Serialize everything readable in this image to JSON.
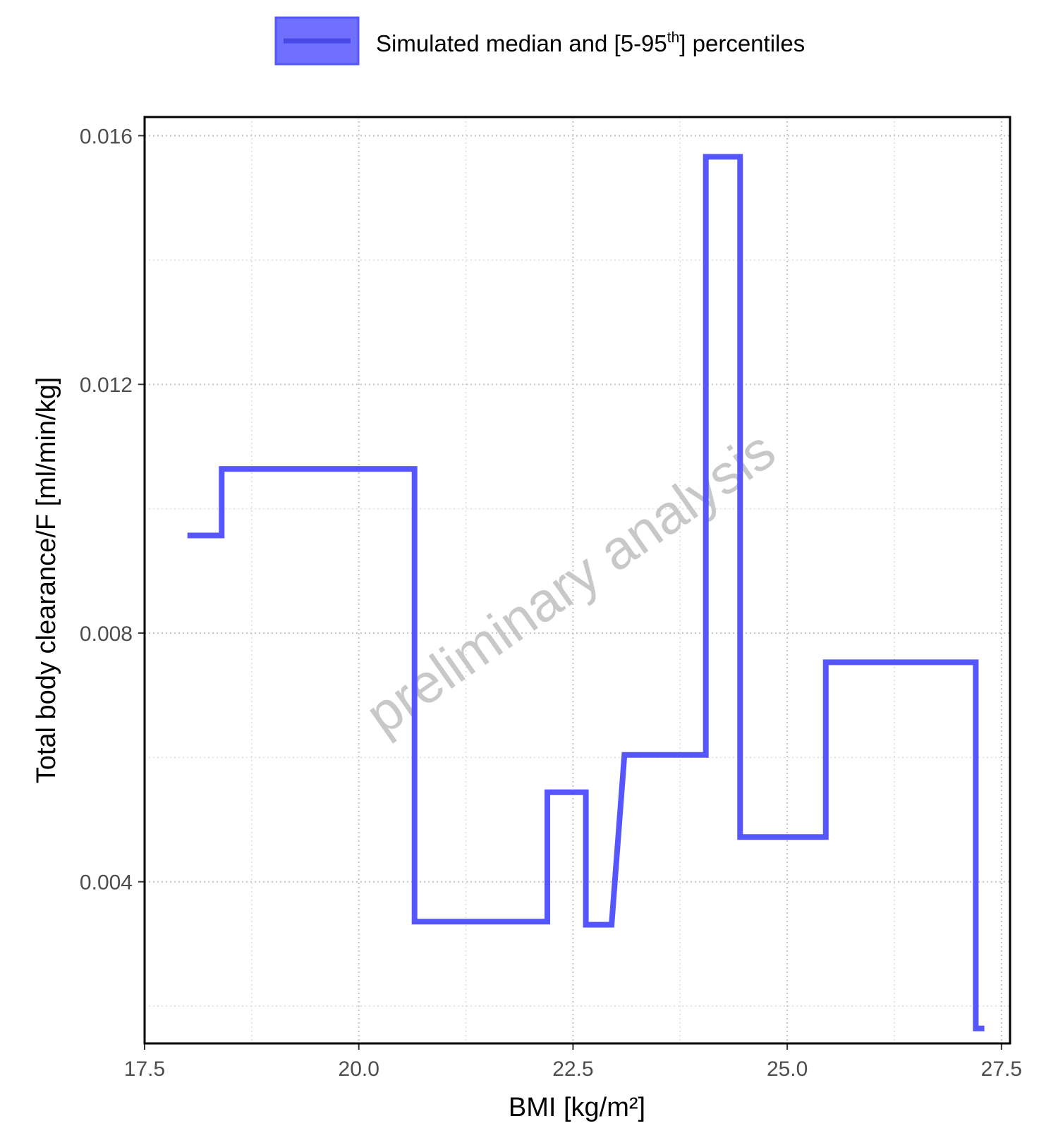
{
  "chart_data": {
    "type": "line",
    "step": true,
    "xlabel": "BMI [kg/m²]",
    "ylabel": "Total body clearance/F [ml/min/kg]",
    "xlim": [
      17.5,
      27.6
    ],
    "ylim": [
      0.0014,
      0.0163
    ],
    "x_ticks": [
      17.5,
      20.0,
      22.5,
      25.0,
      27.5
    ],
    "x_tick_labels": [
      "17.5",
      "20.0",
      "22.5",
      "25.0",
      "27.5"
    ],
    "y_ticks": [
      0.004,
      0.008,
      0.012,
      0.016
    ],
    "y_tick_labels": [
      "0.004",
      "0.008",
      "0.012",
      "0.016"
    ],
    "grid": true,
    "legend": {
      "position": "top",
      "label_main": "Simulated median and [5-95",
      "label_sup": "th",
      "label_tail": "] percentiles"
    },
    "watermark": "preliminary analysis",
    "series": [
      {
        "color": "#5656ff",
        "fill": "#7070ff",
        "x": [
          18.0,
          18.4,
          18.4,
          20.65,
          20.65,
          22.2,
          22.2,
          22.65,
          22.65,
          22.95,
          23.1,
          24.05,
          24.05,
          24.45,
          24.45,
          25.45,
          25.45,
          27.2,
          27.2,
          27.3
        ],
        "y": [
          0.00957,
          0.00957,
          0.01064,
          0.01064,
          0.00336,
          0.00336,
          0.00544,
          0.00544,
          0.00331,
          0.00331,
          0.00604,
          0.00604,
          0.01566,
          0.01566,
          0.00472,
          0.00472,
          0.00753,
          0.00753,
          0.00164,
          0.00164
        ]
      }
    ]
  }
}
